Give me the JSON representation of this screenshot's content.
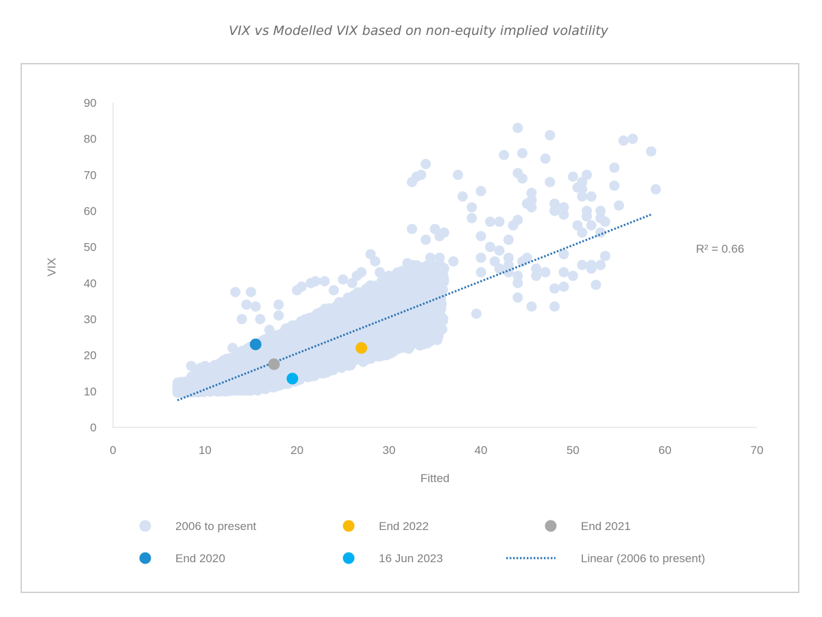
{
  "chart_data": {
    "type": "scatter",
    "title": "VIX vs Modelled VIX based on non-equity implied volatility",
    "xlabel": "Fitted",
    "ylabel": "VIX",
    "xlim": [
      0,
      70
    ],
    "ylim": [
      0,
      90
    ],
    "x_ticks": [
      "0",
      "10",
      "20",
      "30",
      "40",
      "50",
      "60",
      "70"
    ],
    "y_ticks": [
      "0",
      "10",
      "20",
      "30",
      "40",
      "50",
      "60",
      "70",
      "80",
      "90"
    ],
    "grid": false,
    "legend_position": "bottom",
    "annotation": "R² = 0.66",
    "colors": {
      "history": "#d6e2f3",
      "end_2022": "#f9bb08",
      "end_2021": "#a8a8a8",
      "end_2020": "#1e8fd0",
      "jun_2023": "#00b0f0",
      "trend": "#2e75b6"
    },
    "series": [
      {
        "name": "2006 to present",
        "points": [
          [
            8.5,
            17
          ],
          [
            9.5,
            16.5
          ],
          [
            10,
            17
          ],
          [
            9,
            16
          ],
          [
            11,
            15
          ],
          [
            12,
            17
          ],
          [
            13,
            22
          ],
          [
            13.3,
            37.5
          ],
          [
            14,
            30
          ],
          [
            14.5,
            34
          ],
          [
            15,
            37.5
          ],
          [
            15.5,
            33.5
          ],
          [
            16,
            30
          ],
          [
            17,
            27
          ],
          [
            18,
            34
          ],
          [
            18,
            31
          ],
          [
            20,
            38
          ],
          [
            20.5,
            39
          ],
          [
            21.5,
            40
          ],
          [
            22,
            40.5
          ],
          [
            23,
            40.5
          ],
          [
            24,
            38
          ],
          [
            25,
            41
          ],
          [
            26,
            40
          ],
          [
            26.5,
            42
          ],
          [
            27,
            43
          ],
          [
            28,
            48
          ],
          [
            28.5,
            46
          ],
          [
            29,
            43
          ],
          [
            30,
            42
          ],
          [
            31,
            41
          ],
          [
            32,
            45.5
          ],
          [
            32.5,
            55
          ],
          [
            32.5,
            68
          ],
          [
            33,
            69.5
          ],
          [
            33.5,
            70
          ],
          [
            34,
            73
          ],
          [
            34,
            52
          ],
          [
            35,
            55
          ],
          [
            35.5,
            53
          ],
          [
            36,
            54
          ],
          [
            34.5,
            47
          ],
          [
            35.5,
            47
          ],
          [
            33.5,
            41
          ],
          [
            37,
            46
          ],
          [
            37.5,
            70
          ],
          [
            38,
            64
          ],
          [
            39,
            61
          ],
          [
            39,
            58
          ],
          [
            40,
            65.5
          ],
          [
            41,
            57
          ],
          [
            42,
            57
          ],
          [
            42.5,
            75.5
          ],
          [
            43,
            52
          ],
          [
            43.5,
            56
          ],
          [
            44,
            83
          ],
          [
            44,
            70.5
          ],
          [
            44.5,
            76
          ],
          [
            44.5,
            69
          ],
          [
            44,
            57.5
          ],
          [
            45,
            62
          ],
          [
            45.5,
            65
          ],
          [
            45.5,
            63
          ],
          [
            45.5,
            61
          ],
          [
            46,
            42
          ],
          [
            47,
            74.5
          ],
          [
            47.5,
            81
          ],
          [
            47.5,
            68
          ],
          [
            48,
            62
          ],
          [
            48,
            60
          ],
          [
            49,
            61
          ],
          [
            49,
            59
          ],
          [
            50,
            69.5
          ],
          [
            50.5,
            66.5
          ],
          [
            51,
            68
          ],
          [
            51.5,
            70
          ],
          [
            51,
            66
          ],
          [
            51,
            64
          ],
          [
            52,
            64
          ],
          [
            51.5,
            60
          ],
          [
            51.5,
            58.5
          ],
          [
            53,
            60
          ],
          [
            53,
            58
          ],
          [
            53.5,
            57
          ],
          [
            52,
            56
          ],
          [
            53,
            54
          ],
          [
            50.5,
            56
          ],
          [
            51,
            54
          ],
          [
            54.5,
            67
          ],
          [
            54.5,
            72
          ],
          [
            55,
            61.5
          ],
          [
            55.5,
            79.5
          ],
          [
            56.5,
            80
          ],
          [
            58.5,
            76.5
          ],
          [
            59,
            66
          ],
          [
            49,
            48
          ],
          [
            49,
            43
          ],
          [
            49,
            39
          ],
          [
            48,
            38.5
          ],
          [
            50,
            42
          ],
          [
            51,
            45
          ],
          [
            52,
            45
          ],
          [
            52,
            44
          ],
          [
            53,
            45
          ],
          [
            53.5,
            47.5
          ],
          [
            52.5,
            39.5
          ],
          [
            40,
            47
          ],
          [
            40,
            43
          ],
          [
            41.5,
            46
          ],
          [
            42,
            44
          ],
          [
            43,
            45
          ],
          [
            43,
            43
          ],
          [
            44,
            42
          ],
          [
            44,
            40
          ],
          [
            44,
            36
          ],
          [
            45.5,
            33.5
          ],
          [
            48,
            33.5
          ],
          [
            39.5,
            31.5
          ],
          [
            40,
            53
          ],
          [
            41,
            50
          ],
          [
            42,
            49
          ],
          [
            43,
            47
          ],
          [
            44.5,
            46
          ],
          [
            45,
            47
          ],
          [
            46,
            44
          ],
          [
            47,
            43
          ]
        ],
        "dense_band": "most of the 2006-to-present observations form a dense cloud between Fitted ≈ 7–36 and VIX ≈ 10–45, centred along the trend line"
      },
      {
        "name": "End 2022",
        "points": [
          [
            27,
            22
          ]
        ]
      },
      {
        "name": "End 2021",
        "points": [
          [
            17.5,
            17.5
          ]
        ]
      },
      {
        "name": "End 2020",
        "points": [
          [
            15.5,
            23
          ]
        ]
      },
      {
        "name": "16 Jun 2023",
        "points": [
          [
            19.5,
            13.5
          ]
        ]
      },
      {
        "name": "Linear (2006 to present)",
        "type": "trend",
        "points": [
          [
            7,
            7.5
          ],
          [
            58.5,
            59
          ]
        ]
      }
    ]
  }
}
